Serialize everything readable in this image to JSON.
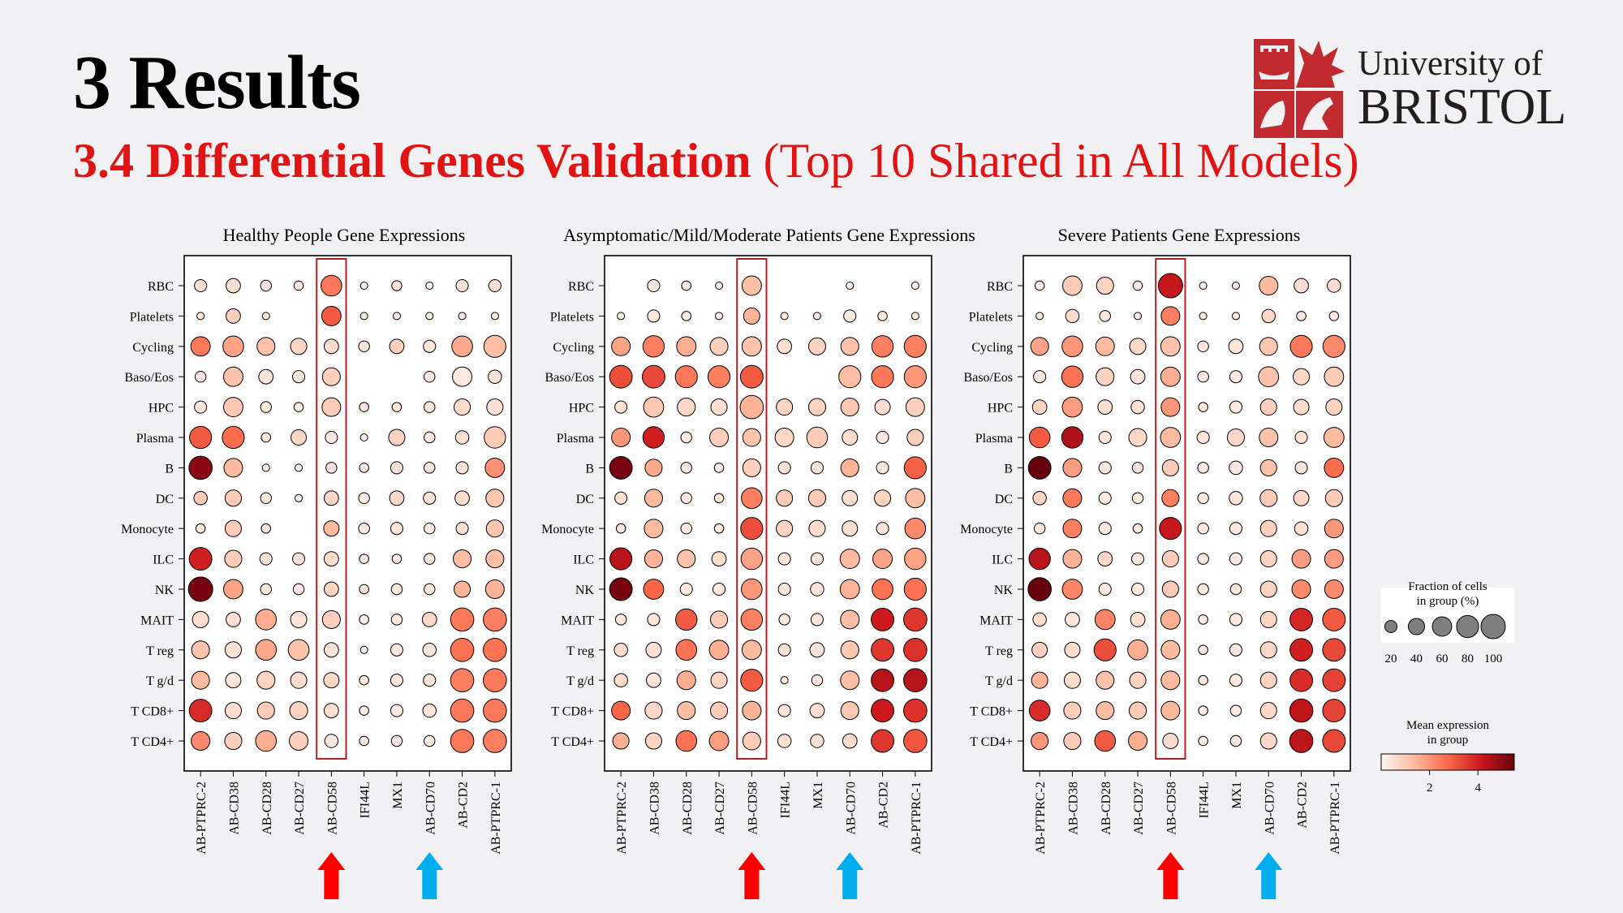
{
  "slide": {
    "title": "3 Results",
    "subtitle_bold": "3.4 Differential Genes Validation",
    "subtitle_rest": "(Top 10 Shared in All Models)"
  },
  "logo": {
    "line1": "University of",
    "line2": "BRISTOL",
    "crest_color": "#c12a2f"
  },
  "colors": {
    "highlight_box": "#b02020",
    "arrow_red": "#ff0000",
    "arrow_blue": "#00aeef",
    "cmap": [
      "#fff5f0",
      "#fcbba1",
      "#fb6a4a",
      "#cb181d",
      "#67000d"
    ]
  },
  "legend": {
    "size_title": "Fraction of cells\nin group (%)",
    "size_ticks": [
      "20",
      "40",
      "60",
      "80",
      "100"
    ],
    "color_title": "Mean expression\nin group",
    "color_ticks": [
      "2",
      "4"
    ]
  },
  "chart_data": [
    {
      "type": "dotplot",
      "title": "Healthy People Gene Expressions",
      "genes": [
        "AB-PTPRC-2",
        "AB-CD38",
        "AB-CD28",
        "AB-CD27",
        "AB-CD58",
        "IFI44L",
        "MX1",
        "AB-CD70",
        "AB-CD2",
        "AB-PTPRC-1"
      ],
      "cell_types": [
        "RBC",
        "Platelets",
        "Cycling",
        "Baso/Eos",
        "HPC",
        "Plasma",
        "B",
        "DC",
        "Monocyte",
        "ILC",
        "NK",
        "MAIT",
        "T reg",
        "T g/d",
        "T CD8+",
        "T CD4+"
      ],
      "highlight_gene": "AB-CD58",
      "arrow_red_gene": "AB-CD58",
      "arrow_blue_gene": "AB-CD70",
      "fraction": [
        [
          20,
          30,
          15,
          10,
          70,
          5,
          12,
          5,
          20,
          20
        ],
        [
          5,
          30,
          5,
          0,
          60,
          5,
          5,
          5,
          5,
          5
        ],
        [
          60,
          70,
          50,
          40,
          30,
          15,
          30,
          20,
          70,
          80
        ],
        [
          15,
          60,
          30,
          20,
          50,
          0,
          0,
          15,
          60,
          25
        ],
        [
          20,
          60,
          15,
          10,
          55,
          10,
          10,
          15,
          40,
          40
        ],
        [
          80,
          80,
          10,
          35,
          20,
          5,
          40,
          15,
          25,
          75
        ],
        [
          90,
          55,
          5,
          5,
          15,
          10,
          20,
          15,
          20,
          60
        ],
        [
          25,
          40,
          15,
          5,
          30,
          15,
          30,
          20,
          30,
          50
        ],
        [
          10,
          40,
          10,
          0,
          35,
          15,
          20,
          15,
          20,
          45
        ],
        [
          85,
          45,
          20,
          20,
          30,
          10,
          10,
          15,
          50,
          50
        ],
        [
          100,
          60,
          15,
          15,
          30,
          10,
          15,
          15,
          40,
          55
        ],
        [
          40,
          30,
          70,
          40,
          50,
          10,
          15,
          30,
          90,
          90
        ],
        [
          50,
          40,
          70,
          70,
          30,
          5,
          20,
          25,
          90,
          90
        ],
        [
          50,
          35,
          50,
          40,
          35,
          10,
          20,
          20,
          90,
          90
        ],
        [
          85,
          40,
          45,
          50,
          30,
          10,
          20,
          25,
          90,
          90
        ],
        [
          55,
          45,
          70,
          55,
          25,
          10,
          15,
          15,
          90,
          90
        ]
      ],
      "expression": [
        [
          0.5,
          0.6,
          0.3,
          0.3,
          2.5,
          0.2,
          0.4,
          0.2,
          0.4,
          0.5
        ],
        [
          0.2,
          0.9,
          0.2,
          0.1,
          3.0,
          0.2,
          0.2,
          0.2,
          0.2,
          0.2
        ],
        [
          2.5,
          1.8,
          1.2,
          0.8,
          0.6,
          0.4,
          0.9,
          0.4,
          1.7,
          1.3
        ],
        [
          0.3,
          1.2,
          0.4,
          0.3,
          0.9,
          0.1,
          0.1,
          0.3,
          0.3,
          0.4
        ],
        [
          0.4,
          1.1,
          0.3,
          0.2,
          1.0,
          0.3,
          0.3,
          0.3,
          0.6,
          0.5
        ],
        [
          3.0,
          2.7,
          0.3,
          0.7,
          0.3,
          0.2,
          0.8,
          0.3,
          0.5,
          1.0
        ],
        [
          5.0,
          1.4,
          0.2,
          0.2,
          0.3,
          0.3,
          0.4,
          0.3,
          0.4,
          2.1
        ],
        [
          1.0,
          1.0,
          0.3,
          0.1,
          0.7,
          0.3,
          0.7,
          0.4,
          0.6,
          1.1
        ],
        [
          0.3,
          1.0,
          0.3,
          0.1,
          1.4,
          0.3,
          0.4,
          0.3,
          0.5,
          1.1
        ],
        [
          4.0,
          1.0,
          0.4,
          0.5,
          0.6,
          0.2,
          0.3,
          0.3,
          1.3,
          1.3
        ],
        [
          5.3,
          1.8,
          0.3,
          0.3,
          0.8,
          0.3,
          0.3,
          0.3,
          1.5,
          1.5
        ],
        [
          0.6,
          0.5,
          1.6,
          0.4,
          0.9,
          0.2,
          0.3,
          0.7,
          2.5,
          2.4
        ],
        [
          1.2,
          0.5,
          1.7,
          1.2,
          0.4,
          0.1,
          0.3,
          0.4,
          2.6,
          2.6
        ],
        [
          1.4,
          0.4,
          0.8,
          0.6,
          0.7,
          0.2,
          0.3,
          0.4,
          2.4,
          2.5
        ],
        [
          3.8,
          0.6,
          1.0,
          0.8,
          0.5,
          0.2,
          0.3,
          0.4,
          2.5,
          2.5
        ],
        [
          2.2,
          0.9,
          1.6,
          0.9,
          0.3,
          0.3,
          0.3,
          0.3,
          2.5,
          2.4
        ]
      ]
    },
    {
      "type": "dotplot",
      "title": "Asymptomatic/Mild/Moderate Patients Gene Expressions",
      "genes": [
        "AB-PTPRC-2",
        "AB-CD38",
        "AB-CD28",
        "AB-CD27",
        "AB-CD58",
        "IFI44L",
        "MX1",
        "AB-CD70",
        "AB-CD2",
        "AB-PTPRC-1"
      ],
      "cell_types": [
        "RBC",
        "Platelets",
        "Cycling",
        "Baso/Eos",
        "HPC",
        "Plasma",
        "B",
        "DC",
        "Monocyte",
        "ILC",
        "NK",
        "MAIT",
        "T reg",
        "T g/d",
        "T CD8+",
        "T CD4+"
      ],
      "highlight_gene": "AB-CD58",
      "arrow_red_gene": "AB-CD58",
      "arrow_blue_gene": "AB-CD70",
      "fraction": [
        [
          0,
          20,
          10,
          5,
          60,
          0,
          0,
          5,
          0,
          5
        ],
        [
          5,
          20,
          10,
          5,
          40,
          5,
          5,
          20,
          10,
          5
        ],
        [
          55,
          75,
          60,
          50,
          60,
          30,
          45,
          50,
          75,
          80
        ],
        [
          85,
          85,
          80,
          80,
          85,
          0,
          0,
          80,
          80,
          80
        ],
        [
          20,
          65,
          50,
          40,
          90,
          40,
          45,
          50,
          35,
          55
        ],
        [
          55,
          75,
          15,
          55,
          50,
          55,
          70,
          35,
          20,
          40
        ],
        [
          85,
          45,
          15,
          10,
          50,
          20,
          20,
          50,
          20,
          80
        ],
        [
          20,
          50,
          15,
          10,
          70,
          40,
          45,
          35,
          40,
          60
        ],
        [
          10,
          55,
          15,
          10,
          80,
          40,
          40,
          35,
          20,
          70
        ],
        [
          80,
          50,
          50,
          30,
          75,
          20,
          20,
          60,
          60,
          75
        ],
        [
          85,
          65,
          20,
          20,
          70,
          20,
          25,
          60,
          70,
          80
        ],
        [
          15,
          20,
          75,
          45,
          75,
          15,
          20,
          55,
          85,
          90
        ],
        [
          25,
          35,
          70,
          60,
          60,
          20,
          30,
          50,
          85,
          90
        ],
        [
          25,
          30,
          55,
          40,
          80,
          5,
          15,
          55,
          85,
          90
        ],
        [
          55,
          45,
          50,
          45,
          55,
          20,
          30,
          50,
          85,
          90
        ],
        [
          40,
          40,
          70,
          60,
          50,
          25,
          25,
          30,
          85,
          90
        ]
      ],
      "expression": [
        [
          0,
          0.3,
          0.2,
          0.2,
          1.3,
          0,
          0,
          0.2,
          0,
          0.2
        ],
        [
          0.2,
          0.3,
          0.2,
          0.2,
          1.5,
          0.2,
          0.2,
          0.2,
          0.2,
          0.2
        ],
        [
          1.8,
          2.4,
          1.6,
          0.9,
          1.2,
          0.5,
          0.8,
          1.2,
          2.4,
          2.4
        ],
        [
          3.2,
          3.3,
          2.5,
          2.4,
          3.0,
          0,
          0,
          1.3,
          2.5,
          2.0
        ],
        [
          0.5,
          1.1,
          0.7,
          0.5,
          1.5,
          0.8,
          0.8,
          1.1,
          0.6,
          0.9
        ],
        [
          2.0,
          4.0,
          0.3,
          0.9,
          1.2,
          0.7,
          1.0,
          0.6,
          0.3,
          0.9
        ],
        [
          5.3,
          1.7,
          0.3,
          0.2,
          0.9,
          0.4,
          0.4,
          1.5,
          0.3,
          2.9
        ],
        [
          0.5,
          1.4,
          0.3,
          0.3,
          2.4,
          1.0,
          1.0,
          0.5,
          0.8,
          1.3
        ],
        [
          0.3,
          1.4,
          0.3,
          0.3,
          3.2,
          0.8,
          0.6,
          0.5,
          0.4,
          2.2
        ],
        [
          4.4,
          1.5,
          1.2,
          0.6,
          1.8,
          0.4,
          0.4,
          1.4,
          1.8,
          1.8
        ],
        [
          5.3,
          2.8,
          0.3,
          0.3,
          2.0,
          0.4,
          0.4,
          1.5,
          2.6,
          2.6
        ],
        [
          0.4,
          0.4,
          3.0,
          1.0,
          2.4,
          0.3,
          0.4,
          1.3,
          4.1,
          3.6
        ],
        [
          0.6,
          0.5,
          2.6,
          1.6,
          1.4,
          0.4,
          0.4,
          1.1,
          3.6,
          3.7
        ],
        [
          0.6,
          0.4,
          1.6,
          0.8,
          3.0,
          0.2,
          0.3,
          1.3,
          4.4,
          4.4
        ],
        [
          2.8,
          0.7,
          1.3,
          1.0,
          1.5,
          0.4,
          0.5,
          1.1,
          4.1,
          3.7
        ],
        [
          1.6,
          0.8,
          2.6,
          1.9,
          1.0,
          0.5,
          0.5,
          0.6,
          3.6,
          3.1
        ]
      ]
    },
    {
      "type": "dotplot",
      "title": "Severe Patients Gene Expressions",
      "genes": [
        "AB-PTPRC-2",
        "AB-CD38",
        "AB-CD28",
        "AB-CD27",
        "AB-CD58",
        "IFI44L",
        "MX1",
        "AB-CD70",
        "AB-CD2",
        "AB-PTPRC-1"
      ],
      "cell_types": [
        "RBC",
        "Platelets",
        "Cycling",
        "Baso/Eos",
        "HPC",
        "Plasma",
        "B",
        "DC",
        "Monocyte",
        "ILC",
        "NK",
        "MAIT",
        "T reg",
        "T g/d",
        "T CD8+",
        "T CD4+"
      ],
      "highlight_gene": "AB-CD58",
      "arrow_red_gene": "AB-CD58",
      "arrow_blue_gene": "AB-CD70",
      "fraction": [
        [
          10,
          60,
          45,
          10,
          100,
          5,
          5,
          55,
          30,
          25
        ],
        [
          5,
          25,
          15,
          5,
          55,
          5,
          5,
          25,
          10,
          10
        ],
        [
          50,
          70,
          55,
          40,
          60,
          15,
          30,
          50,
          80,
          80
        ],
        [
          20,
          75,
          50,
          30,
          60,
          15,
          20,
          65,
          40,
          60
        ],
        [
          30,
          65,
          30,
          25,
          55,
          10,
          20,
          40,
          35,
          40
        ],
        [
          70,
          75,
          20,
          50,
          65,
          20,
          45,
          55,
          20,
          65
        ],
        [
          85,
          55,
          20,
          15,
          40,
          15,
          25,
          40,
          20,
          60
        ],
        [
          25,
          55,
          20,
          15,
          45,
          15,
          25,
          45,
          35,
          45
        ],
        [
          15,
          55,
          20,
          10,
          80,
          15,
          20,
          40,
          25,
          55
        ],
        [
          75,
          55,
          30,
          20,
          40,
          15,
          20,
          40,
          55,
          55
        ],
        [
          90,
          65,
          20,
          20,
          40,
          15,
          15,
          40,
          55,
          55
        ],
        [
          25,
          30,
          65,
          30,
          60,
          10,
          20,
          40,
          85,
          85
        ],
        [
          35,
          35,
          80,
          65,
          55,
          10,
          20,
          40,
          85,
          85
        ],
        [
          40,
          40,
          50,
          40,
          55,
          10,
          20,
          40,
          85,
          85
        ],
        [
          70,
          45,
          50,
          45,
          55,
          10,
          15,
          40,
          90,
          85
        ],
        [
          45,
          45,
          70,
          55,
          35,
          10,
          15,
          40,
          90,
          85
        ]
      ],
      "expression": [
        [
          0.3,
          1.0,
          0.8,
          0.2,
          4.2,
          0.2,
          0.2,
          1.4,
          0.5,
          0.6
        ],
        [
          0.2,
          0.6,
          0.3,
          0.2,
          2.4,
          0.2,
          0.2,
          0.7,
          0.3,
          0.3
        ],
        [
          1.8,
          2.0,
          1.4,
          0.7,
          1.2,
          0.4,
          0.4,
          1.1,
          2.5,
          2.2
        ],
        [
          0.3,
          2.6,
          0.8,
          0.4,
          1.6,
          0.3,
          0.3,
          1.2,
          0.7,
          1.0
        ],
        [
          0.8,
          1.9,
          0.5,
          0.5,
          2.0,
          0.3,
          0.3,
          0.9,
          0.6,
          0.8
        ],
        [
          3.0,
          4.5,
          0.4,
          0.7,
          1.4,
          0.4,
          0.7,
          1.2,
          0.5,
          1.4
        ],
        [
          5.5,
          1.9,
          0.3,
          0.3,
          1.0,
          0.3,
          0.3,
          1.2,
          0.4,
          2.7
        ],
        [
          0.8,
          2.5,
          0.3,
          0.3,
          2.4,
          0.3,
          0.4,
          1.0,
          0.7,
          1.0
        ],
        [
          0.4,
          2.4,
          0.3,
          0.3,
          4.2,
          0.3,
          0.3,
          0.9,
          0.5,
          2.0
        ],
        [
          4.4,
          1.5,
          0.7,
          0.3,
          1.0,
          0.3,
          0.3,
          0.8,
          1.9,
          1.9
        ],
        [
          5.5,
          2.3,
          0.3,
          0.3,
          1.0,
          0.3,
          0.3,
          0.8,
          2.2,
          2.2
        ],
        [
          0.6,
          0.4,
          2.3,
          0.5,
          1.6,
          0.2,
          0.3,
          0.8,
          3.9,
          3.0
        ],
        [
          0.9,
          0.6,
          3.2,
          1.6,
          1.4,
          0.2,
          0.3,
          0.7,
          4.0,
          3.3
        ],
        [
          1.5,
          0.6,
          1.2,
          0.8,
          1.4,
          0.2,
          0.3,
          0.8,
          3.8,
          3.4
        ],
        [
          3.8,
          0.9,
          1.3,
          1.0,
          1.4,
          0.2,
          0.3,
          0.7,
          4.3,
          3.4
        ],
        [
          2.0,
          1.0,
          3.0,
          1.6,
          0.6,
          0.2,
          0.3,
          0.7,
          4.3,
          3.3
        ]
      ]
    }
  ]
}
